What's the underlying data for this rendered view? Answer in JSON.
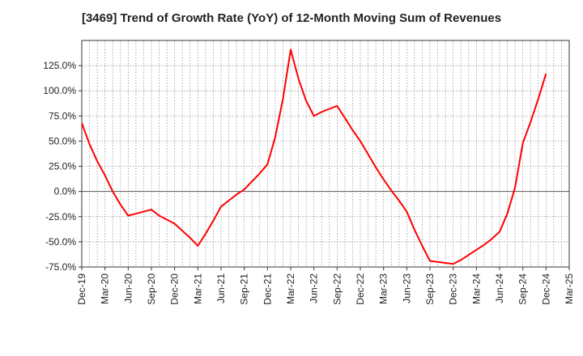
{
  "chart_data": {
    "type": "line",
    "title": "[3469]  Trend of Growth Rate (YoY) of 12-Month Moving Sum of Revenues",
    "xlabel": "",
    "ylabel": "",
    "ylim": [
      -75,
      150
    ],
    "y_ticks": [
      -75,
      -50,
      -25,
      0,
      25,
      50,
      75,
      100,
      125
    ],
    "y_tick_labels": [
      "-75.0%",
      "-50.0%",
      "-25.0%",
      "0.0%",
      "25.0%",
      "50.0%",
      "75.0%",
      "100.0%",
      "125.0%"
    ],
    "x_ticks": [
      "Dec-19",
      "Mar-20",
      "Jun-20",
      "Sep-20",
      "Dec-20",
      "Mar-21",
      "Jun-21",
      "Sep-21",
      "Dec-21",
      "Mar-22",
      "Jun-22",
      "Sep-22",
      "Dec-22",
      "Mar-23",
      "Jun-23",
      "Sep-23",
      "Dec-23",
      "Mar-24",
      "Jun-24",
      "Sep-24",
      "Dec-24",
      "Mar-25"
    ],
    "grid": true,
    "colors": {
      "line": "#ff0000",
      "axis": "#333333",
      "grid": "#888888",
      "zero_line": "#555555"
    },
    "series": [
      {
        "x": [
          "Dec-19",
          "Jan-20",
          "Feb-20",
          "Mar-20",
          "Apr-20",
          "May-20",
          "Jun-20",
          "Jul-20",
          "Aug-20",
          "Sep-20",
          "Oct-20",
          "Nov-20",
          "Dec-20",
          "Jan-21",
          "Feb-21",
          "Mar-21",
          "Apr-21",
          "May-21",
          "Jun-21",
          "Jul-21",
          "Aug-21",
          "Sep-21",
          "Oct-21",
          "Nov-21",
          "Dec-21",
          "Jan-22",
          "Feb-22",
          "Mar-22",
          "Apr-22",
          "May-22",
          "Jun-22",
          "Jul-22",
          "Aug-22",
          "Sep-22",
          "Oct-22",
          "Nov-22",
          "Dec-22",
          "Jan-23",
          "Feb-23",
          "Mar-23",
          "Apr-23",
          "May-23",
          "Jun-23",
          "Jul-23",
          "Aug-23",
          "Sep-23",
          "Oct-23",
          "Nov-23",
          "Dec-23",
          "Jan-24",
          "Feb-24",
          "Mar-24",
          "Apr-24",
          "May-24",
          "Jun-24",
          "Jul-24",
          "Aug-24",
          "Sep-24",
          "Oct-24",
          "Nov-24",
          "Dec-24"
        ],
        "values": [
          68,
          47,
          30,
          16,
          0,
          -13,
          -24,
          -22,
          -20,
          -18,
          -24,
          -28,
          -32,
          -39,
          -46,
          -54,
          -42,
          -29,
          -15,
          -9,
          -3,
          2,
          10,
          18,
          27,
          54,
          92,
          141,
          112,
          90,
          75,
          79,
          82,
          85,
          73,
          61,
          50,
          37,
          24,
          12,
          1,
          -9,
          -20,
          -38,
          -54,
          -69,
          -70,
          -71,
          -72,
          -68,
          -63,
          -58,
          -53,
          -47,
          -40,
          -22,
          4,
          48,
          69,
          92,
          117
        ]
      }
    ]
  }
}
